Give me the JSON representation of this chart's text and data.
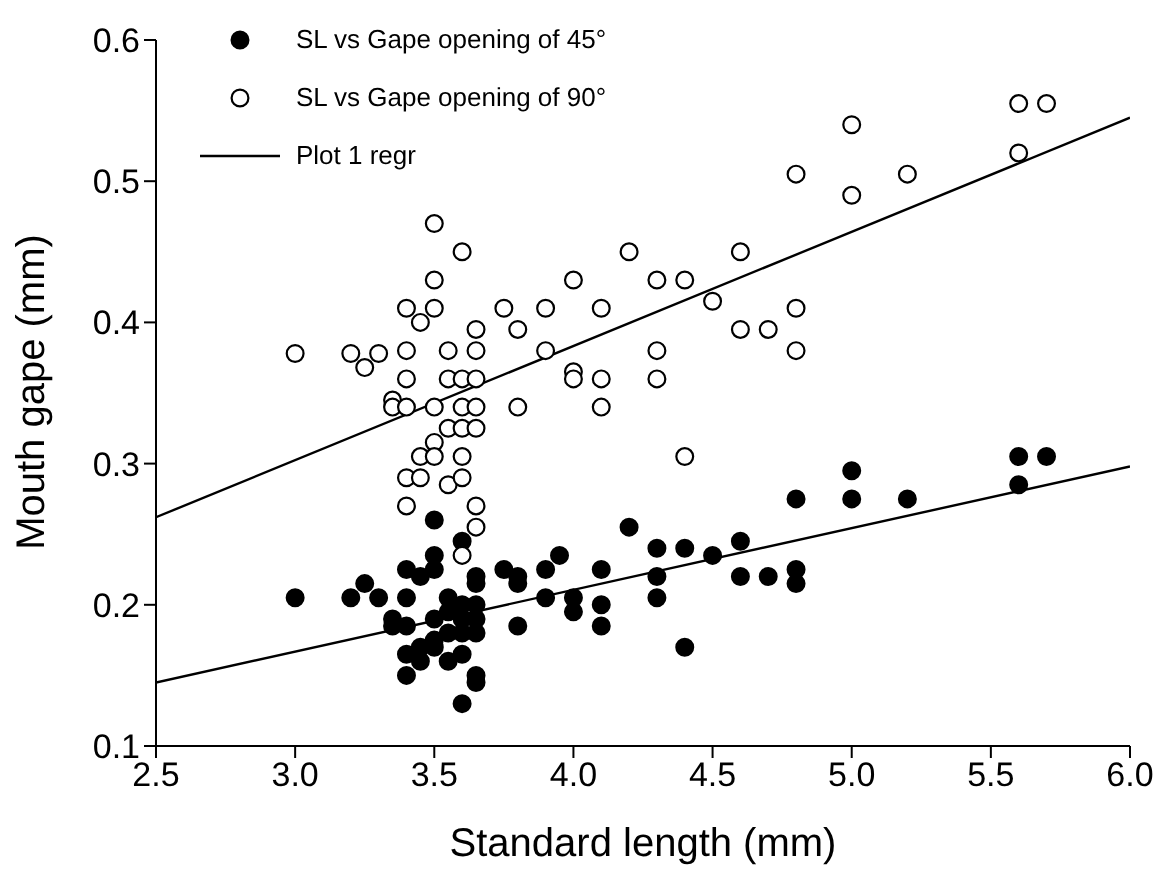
{
  "chart_data": {
    "type": "scatter",
    "xlabel": "Standard length (mm)",
    "ylabel": "Mouth gape (mm)",
    "xlim": [
      2.5,
      6.0
    ],
    "xticks": [
      {
        "value": 2.5,
        "label": "2.5"
      },
      {
        "value": 3,
        "label": "3.0"
      },
      {
        "value": 3.5,
        "label": "3.5"
      },
      {
        "value": 4,
        "label": "4.0"
      },
      {
        "value": 4.5,
        "label": "4.5"
      },
      {
        "value": 5,
        "label": "5.0"
      },
      {
        "value": 5.5,
        "label": "5.5"
      },
      {
        "value": 6,
        "label": "6.0"
      }
    ],
    "ylim": [
      0.1,
      0.6
    ],
    "yticks": [
      0.1,
      0.2,
      0.3,
      0.4,
      0.5,
      0.6
    ],
    "grid": false,
    "legend": "top left",
    "marker": "circle",
    "series": [
      {
        "name": "SL vs Gape opening of 45°",
        "color": "#000000",
        "x": [
          3.0,
          3.2,
          3.25,
          3.3,
          3.35,
          3.35,
          3.4,
          3.4,
          3.4,
          3.4,
          3.4,
          3.45,
          3.45,
          3.45,
          3.5,
          3.5,
          3.5,
          3.5,
          3.5,
          3.5,
          3.55,
          3.55,
          3.55,
          3.55,
          3.6,
          3.6,
          3.6,
          3.6,
          3.6,
          3.6,
          3.65,
          3.65,
          3.65,
          3.65,
          3.65,
          3.65,
          3.65,
          3.75,
          3.8,
          3.8,
          3.8,
          3.9,
          3.9,
          3.95,
          4.0,
          4.0,
          4.1,
          4.1,
          4.1,
          4.2,
          4.3,
          4.3,
          4.3,
          4.4,
          4.4,
          4.5,
          4.6,
          4.6,
          4.7,
          4.8,
          4.8,
          4.8,
          5.0,
          5.0,
          5.2,
          5.6,
          5.6,
          5.7
        ],
        "values": [
          0.205,
          0.205,
          0.215,
          0.205,
          0.19,
          0.185,
          0.225,
          0.205,
          0.185,
          0.165,
          0.15,
          0.22,
          0.17,
          0.16,
          0.26,
          0.235,
          0.225,
          0.19,
          0.175,
          0.17,
          0.205,
          0.195,
          0.16,
          0.18,
          0.245,
          0.2,
          0.19,
          0.18,
          0.165,
          0.13,
          0.22,
          0.215,
          0.2,
          0.19,
          0.18,
          0.15,
          0.145,
          0.225,
          0.22,
          0.215,
          0.185,
          0.225,
          0.205,
          0.235,
          0.205,
          0.195,
          0.225,
          0.2,
          0.185,
          0.255,
          0.24,
          0.22,
          0.205,
          0.24,
          0.17,
          0.235,
          0.245,
          0.22,
          0.22,
          0.225,
          0.215,
          0.275,
          0.295,
          0.275,
          0.275,
          0.305,
          0.285,
          0.305
        ]
      },
      {
        "name": "SL vs Gape opening of 90°",
        "color": "#ffffff",
        "x": [
          3.0,
          3.2,
          3.25,
          3.3,
          3.35,
          3.35,
          3.4,
          3.4,
          3.4,
          3.4,
          3.4,
          3.4,
          3.45,
          3.45,
          3.45,
          3.5,
          3.5,
          3.5,
          3.5,
          3.5,
          3.5,
          3.55,
          3.55,
          3.55,
          3.55,
          3.6,
          3.6,
          3.6,
          3.6,
          3.6,
          3.6,
          3.6,
          3.65,
          3.65,
          3.65,
          3.65,
          3.65,
          3.65,
          3.65,
          3.75,
          3.8,
          3.8,
          3.9,
          3.9,
          4.0,
          4.0,
          4.0,
          4.1,
          4.1,
          4.1,
          4.2,
          4.3,
          4.3,
          4.3,
          4.4,
          4.4,
          4.5,
          4.6,
          4.6,
          4.7,
          4.8,
          4.8,
          4.8,
          5.0,
          5.0,
          5.2,
          5.6,
          5.6,
          5.7
        ],
        "values": [
          0.378,
          0.378,
          0.368,
          0.378,
          0.345,
          0.34,
          0.41,
          0.38,
          0.36,
          0.34,
          0.29,
          0.27,
          0.4,
          0.305,
          0.29,
          0.47,
          0.43,
          0.41,
          0.34,
          0.315,
          0.305,
          0.38,
          0.36,
          0.325,
          0.285,
          0.45,
          0.36,
          0.34,
          0.325,
          0.305,
          0.29,
          0.235,
          0.395,
          0.38,
          0.36,
          0.34,
          0.325,
          0.27,
          0.255,
          0.41,
          0.395,
          0.34,
          0.41,
          0.38,
          0.43,
          0.365,
          0.36,
          0.41,
          0.36,
          0.34,
          0.45,
          0.43,
          0.38,
          0.36,
          0.43,
          0.305,
          0.415,
          0.45,
          0.395,
          0.395,
          0.41,
          0.38,
          0.505,
          0.54,
          0.49,
          0.505,
          0.555,
          0.52,
          0.555
        ]
      },
      {
        "name": "Plot 1 regr",
        "type": "line",
        "color": "#000000",
        "marker": "none",
        "x": [
          2.5,
          6.0
        ],
        "values": [
          0.262,
          0.545
        ]
      },
      {
        "type": "line",
        "color": "#000000",
        "marker": "none",
        "x": [
          2.5,
          6.0
        ],
        "values": [
          0.145,
          0.298
        ]
      }
    ]
  }
}
